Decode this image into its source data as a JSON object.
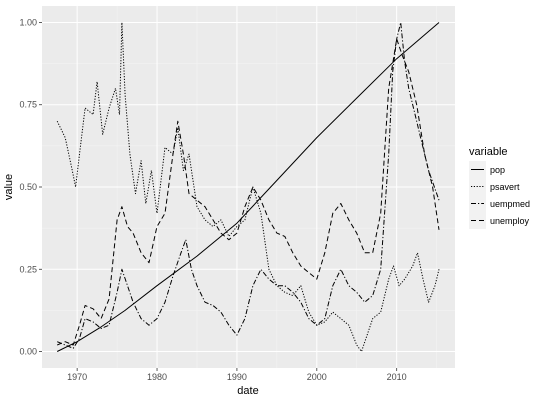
{
  "chart_data": {
    "type": "line",
    "xlabel": "date",
    "ylabel": "value",
    "xlim": [
      1965.6,
      2017.3
    ],
    "ylim": [
      -0.05,
      1.05
    ],
    "x_ticks": [
      1970,
      1980,
      1990,
      2000,
      2010
    ],
    "y_ticks": [
      0,
      0.25,
      0.5,
      0.75,
      1.0
    ],
    "y_tick_labels": [
      "0.00",
      "0.25",
      "0.50",
      "0.75",
      "1.00"
    ],
    "grid": true,
    "legend": {
      "title": "variable",
      "placement": "right"
    },
    "colors": {
      "panel": "#ebebeb",
      "grid_major": "#ffffff",
      "line": "#000000",
      "legend_key": "#f2f2f2"
    },
    "series": [
      {
        "name": "pop",
        "dash": "solid",
        "points": [
          [
            1967.5,
            0.0
          ],
          [
            1970,
            0.03
          ],
          [
            1973,
            0.075
          ],
          [
            1976,
            0.125
          ],
          [
            1980,
            0.2
          ],
          [
            1985,
            0.29
          ],
          [
            1990,
            0.39
          ],
          [
            1995,
            0.52
          ],
          [
            2000,
            0.65
          ],
          [
            2005,
            0.77
          ],
          [
            2010,
            0.89
          ],
          [
            2015.3,
            1.0
          ]
        ]
      },
      {
        "name": "psavert",
        "dash": "dotted",
        "points": [
          [
            1967.5,
            0.7
          ],
          [
            1968.5,
            0.65
          ],
          [
            1969.3,
            0.56
          ],
          [
            1969.8,
            0.5
          ],
          [
            1970.3,
            0.6
          ],
          [
            1971,
            0.74
          ],
          [
            1972,
            0.72
          ],
          [
            1972.5,
            0.82
          ],
          [
            1973.2,
            0.66
          ],
          [
            1974,
            0.74
          ],
          [
            1974.8,
            0.8
          ],
          [
            1975.3,
            0.72
          ],
          [
            1975.6,
            1.0
          ],
          [
            1976,
            0.78
          ],
          [
            1976.6,
            0.6
          ],
          [
            1977.3,
            0.48
          ],
          [
            1978,
            0.58
          ],
          [
            1978.6,
            0.45
          ],
          [
            1979.3,
            0.55
          ],
          [
            1980,
            0.42
          ],
          [
            1981,
            0.62
          ],
          [
            1982,
            0.6
          ],
          [
            1982.6,
            0.68
          ],
          [
            1983.3,
            0.55
          ],
          [
            1984,
            0.6
          ],
          [
            1985,
            0.44
          ],
          [
            1986,
            0.4
          ],
          [
            1987,
            0.38
          ],
          [
            1988,
            0.4
          ],
          [
            1989,
            0.35
          ],
          [
            1990,
            0.38
          ],
          [
            1991,
            0.4
          ],
          [
            1992,
            0.5
          ],
          [
            1993,
            0.42
          ],
          [
            1994,
            0.25
          ],
          [
            1995,
            0.2
          ],
          [
            1996,
            0.18
          ],
          [
            1997,
            0.17
          ],
          [
            1998,
            0.2
          ],
          [
            1999,
            0.12
          ],
          [
            2000,
            0.08
          ],
          [
            2001,
            0.09
          ],
          [
            2002,
            0.12
          ],
          [
            2003,
            0.1
          ],
          [
            2004,
            0.08
          ],
          [
            2005,
            0.02
          ],
          [
            2005.6,
            0.0
          ],
          [
            2006.3,
            0.05
          ],
          [
            2007,
            0.1
          ],
          [
            2008,
            0.12
          ],
          [
            2009,
            0.22
          ],
          [
            2009.6,
            0.26
          ],
          [
            2010.3,
            0.2
          ],
          [
            2011,
            0.22
          ],
          [
            2012,
            0.26
          ],
          [
            2012.6,
            0.3
          ],
          [
            2013.3,
            0.22
          ],
          [
            2014,
            0.15
          ],
          [
            2014.8,
            0.2
          ],
          [
            2015.3,
            0.25
          ]
        ]
      },
      {
        "name": "uempmed",
        "dash": "dashdot",
        "points": [
          [
            1967.5,
            0.03
          ],
          [
            1968.5,
            0.02
          ],
          [
            1969.5,
            0.01
          ],
          [
            1970.3,
            0.04
          ],
          [
            1971,
            0.1
          ],
          [
            1972,
            0.09
          ],
          [
            1973,
            0.07
          ],
          [
            1974,
            0.08
          ],
          [
            1975,
            0.18
          ],
          [
            1975.6,
            0.25
          ],
          [
            1976.3,
            0.2
          ],
          [
            1977,
            0.15
          ],
          [
            1978,
            0.1
          ],
          [
            1979,
            0.08
          ],
          [
            1980,
            0.1
          ],
          [
            1981,
            0.15
          ],
          [
            1982,
            0.23
          ],
          [
            1983,
            0.3
          ],
          [
            1983.6,
            0.34
          ],
          [
            1984.3,
            0.25
          ],
          [
            1985,
            0.2
          ],
          [
            1986,
            0.15
          ],
          [
            1987,
            0.14
          ],
          [
            1988,
            0.12
          ],
          [
            1989,
            0.08
          ],
          [
            1990,
            0.05
          ],
          [
            1991,
            0.1
          ],
          [
            1992,
            0.2
          ],
          [
            1993,
            0.25
          ],
          [
            1994,
            0.22
          ],
          [
            1995,
            0.2
          ],
          [
            1996,
            0.2
          ],
          [
            1997,
            0.18
          ],
          [
            1998,
            0.15
          ],
          [
            1999,
            0.1
          ],
          [
            2000,
            0.08
          ],
          [
            2001,
            0.1
          ],
          [
            2002,
            0.2
          ],
          [
            2003,
            0.25
          ],
          [
            2004,
            0.2
          ],
          [
            2005,
            0.18
          ],
          [
            2006,
            0.15
          ],
          [
            2007,
            0.17
          ],
          [
            2008,
            0.25
          ],
          [
            2009,
            0.6
          ],
          [
            2009.5,
            0.85
          ],
          [
            2010,
            0.95
          ],
          [
            2010.5,
            1.0
          ],
          [
            2011,
            0.88
          ],
          [
            2011.5,
            0.8
          ],
          [
            2012,
            0.75
          ],
          [
            2013,
            0.65
          ],
          [
            2014,
            0.55
          ],
          [
            2015.3,
            0.46
          ]
        ]
      },
      {
        "name": "unemploy",
        "dash": "dashed",
        "points": [
          [
            1967.5,
            0.02
          ],
          [
            1968.5,
            0.03
          ],
          [
            1969.5,
            0.02
          ],
          [
            1970.3,
            0.08
          ],
          [
            1971,
            0.14
          ],
          [
            1972,
            0.13
          ],
          [
            1973,
            0.1
          ],
          [
            1974,
            0.16
          ],
          [
            1975,
            0.4
          ],
          [
            1975.6,
            0.44
          ],
          [
            1976.3,
            0.38
          ],
          [
            1977,
            0.36
          ],
          [
            1978,
            0.3
          ],
          [
            1979,
            0.27
          ],
          [
            1980,
            0.38
          ],
          [
            1981,
            0.42
          ],
          [
            1982,
            0.6
          ],
          [
            1982.6,
            0.7
          ],
          [
            1983.3,
            0.6
          ],
          [
            1984,
            0.48
          ],
          [
            1985,
            0.46
          ],
          [
            1986,
            0.44
          ],
          [
            1987,
            0.4
          ],
          [
            1988,
            0.36
          ],
          [
            1989,
            0.34
          ],
          [
            1990,
            0.36
          ],
          [
            1991,
            0.44
          ],
          [
            1992,
            0.5
          ],
          [
            1993,
            0.46
          ],
          [
            1994,
            0.4
          ],
          [
            1995,
            0.36
          ],
          [
            1996,
            0.35
          ],
          [
            1997,
            0.3
          ],
          [
            1998,
            0.26
          ],
          [
            1999,
            0.24
          ],
          [
            2000,
            0.22
          ],
          [
            2001,
            0.3
          ],
          [
            2002,
            0.42
          ],
          [
            2003,
            0.45
          ],
          [
            2004,
            0.4
          ],
          [
            2005,
            0.36
          ],
          [
            2006,
            0.3
          ],
          [
            2007,
            0.3
          ],
          [
            2008,
            0.42
          ],
          [
            2009,
            0.8
          ],
          [
            2010,
            0.95
          ],
          [
            2010.7,
            0.9
          ],
          [
            2011.5,
            0.85
          ],
          [
            2012.5,
            0.75
          ],
          [
            2013.5,
            0.6
          ],
          [
            2014.5,
            0.5
          ],
          [
            2015.3,
            0.37
          ]
        ]
      }
    ]
  }
}
